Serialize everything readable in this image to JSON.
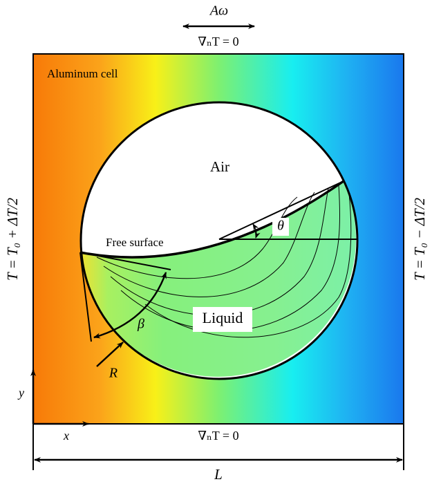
{
  "labels": {
    "amplitude": "Aω",
    "top_boundary": "∇ₙT = 0",
    "cell": "Aluminum cell",
    "air": "Air",
    "angle_theta": "θ",
    "free_surface": "Free surface",
    "angle_beta": "β",
    "liquid": "Liquid",
    "radius": "R",
    "y_axis": "y",
    "x_axis": "x",
    "bottom_boundary": "∇ₙT = 0",
    "length": "L",
    "left_boundary": "T = T₀ + ΔT/2",
    "right_boundary": "T = T₀ − ΔT/2"
  }
}
